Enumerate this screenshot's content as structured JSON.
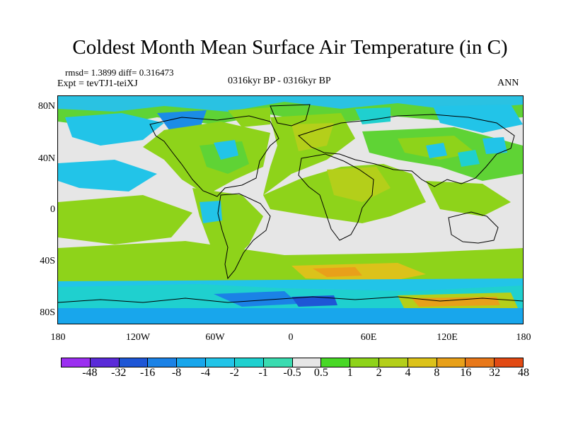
{
  "title": "Coldest Month Mean Surface Air Temperature (in C)",
  "stats": {
    "rmsd_diff": "rmsd= 1.3899 diff= 0.316473",
    "expt": "Expt = tevTJ1-teiXJ"
  },
  "period": "0316kyr BP - 0316kyr BP",
  "season": "ANN",
  "axes": {
    "lat_labels": [
      "80N",
      "40N",
      "0",
      "40S",
      "80S"
    ],
    "lon_labels": [
      "180",
      "120W",
      "60W",
      "0",
      "60E",
      "120E",
      "180"
    ]
  },
  "colorbar": {
    "colors": [
      "#9b2ff0",
      "#5a2bd8",
      "#1e56d6",
      "#1b82e6",
      "#18a6ec",
      "#22c4e8",
      "#1fd0cf",
      "#3adbb0",
      "#e6e6e6",
      "#48d826",
      "#8ed31a",
      "#b4cf1a",
      "#dcc21a",
      "#e8a01a",
      "#e8781a",
      "#e14a14"
    ],
    "labels": [
      "-48",
      "-32",
      "-16",
      "-8",
      "-4",
      "-2",
      "-1",
      "-0.5",
      "0.5",
      "1",
      "2",
      "4",
      "8",
      "16",
      "32",
      "48"
    ]
  }
}
